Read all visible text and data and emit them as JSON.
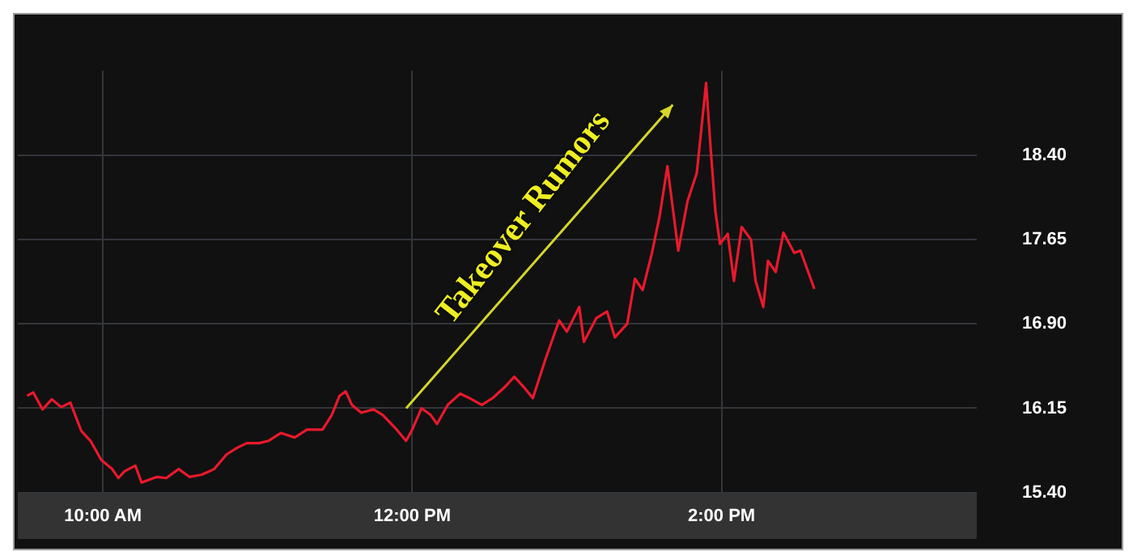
{
  "chart_data": {
    "type": "line",
    "annotations": [
      "Takeover Rumors"
    ],
    "x": [
      9.51,
      9.55,
      9.61,
      9.67,
      9.73,
      9.79,
      9.86,
      9.92,
      9.99,
      10.06,
      10.1,
      10.14,
      10.21,
      10.25,
      10.35,
      10.41,
      10.49,
      10.56,
      10.64,
      10.72,
      10.8,
      10.87,
      10.93,
      11.01,
      11.07,
      11.15,
      11.24,
      11.32,
      11.42,
      11.48,
      11.53,
      11.57,
      11.61,
      11.67,
      11.75,
      11.81,
      11.9,
      11.96,
      12.0,
      12.06,
      12.12,
      12.16,
      12.23,
      12.31,
      12.37,
      12.45,
      12.52,
      12.6,
      12.66,
      12.72,
      12.78,
      12.86,
      12.95,
      13.0,
      13.08,
      13.11,
      13.19,
      13.26,
      13.31,
      13.39,
      13.44,
      13.49,
      13.55,
      13.6,
      13.65,
      13.72,
      13.78,
      13.84,
      13.9,
      13.93,
      13.96,
      13.99,
      14.04,
      14.08,
      14.13,
      14.19,
      14.22,
      14.27,
      14.3,
      14.35,
      14.4,
      14.47,
      14.51,
      14.6
    ],
    "series": [
      {
        "color": "#e8192c",
        "values": [
          16.26,
          16.29,
          16.14,
          16.23,
          16.16,
          16.2,
          15.95,
          15.86,
          15.69,
          15.61,
          15.53,
          15.59,
          15.64,
          15.49,
          15.54,
          15.53,
          15.61,
          15.54,
          15.56,
          15.61,
          15.74,
          15.8,
          15.84,
          15.84,
          15.86,
          15.93,
          15.89,
          15.96,
          15.96,
          16.09,
          16.26,
          16.3,
          16.18,
          16.11,
          16.14,
          16.09,
          15.96,
          15.86,
          15.96,
          16.15,
          16.09,
          16.01,
          16.18,
          16.28,
          16.24,
          16.18,
          16.24,
          16.34,
          16.43,
          16.34,
          16.24,
          16.58,
          16.93,
          16.83,
          17.05,
          16.74,
          16.95,
          17.01,
          16.78,
          16.9,
          17.3,
          17.2,
          17.53,
          17.86,
          18.3,
          17.55,
          17.99,
          18.24,
          19.04,
          18.45,
          17.9,
          17.61,
          17.7,
          17.28,
          17.76,
          17.65,
          17.28,
          17.05,
          17.46,
          17.36,
          17.71,
          17.53,
          17.55,
          17.21
        ]
      }
    ],
    "xlim": [
      9.45,
      15.65
    ],
    "xticks": [
      {
        "value": 10,
        "label": "10:00 AM"
      },
      {
        "value": 12,
        "label": "12:00 PM"
      },
      {
        "value": 14,
        "label": "2:00 PM"
      }
    ],
    "ylim": [
      15.4,
      19.15
    ],
    "yticks": [
      {
        "value": 15.4,
        "label": "15.40"
      },
      {
        "value": 16.15,
        "label": "16.15"
      },
      {
        "value": 16.9,
        "label": "16.90"
      },
      {
        "value": 17.65,
        "label": "17.65"
      },
      {
        "value": 18.4,
        "label": "18.40"
      }
    ],
    "grid": true,
    "legend": false,
    "marker": "none",
    "line_style": "solid"
  }
}
